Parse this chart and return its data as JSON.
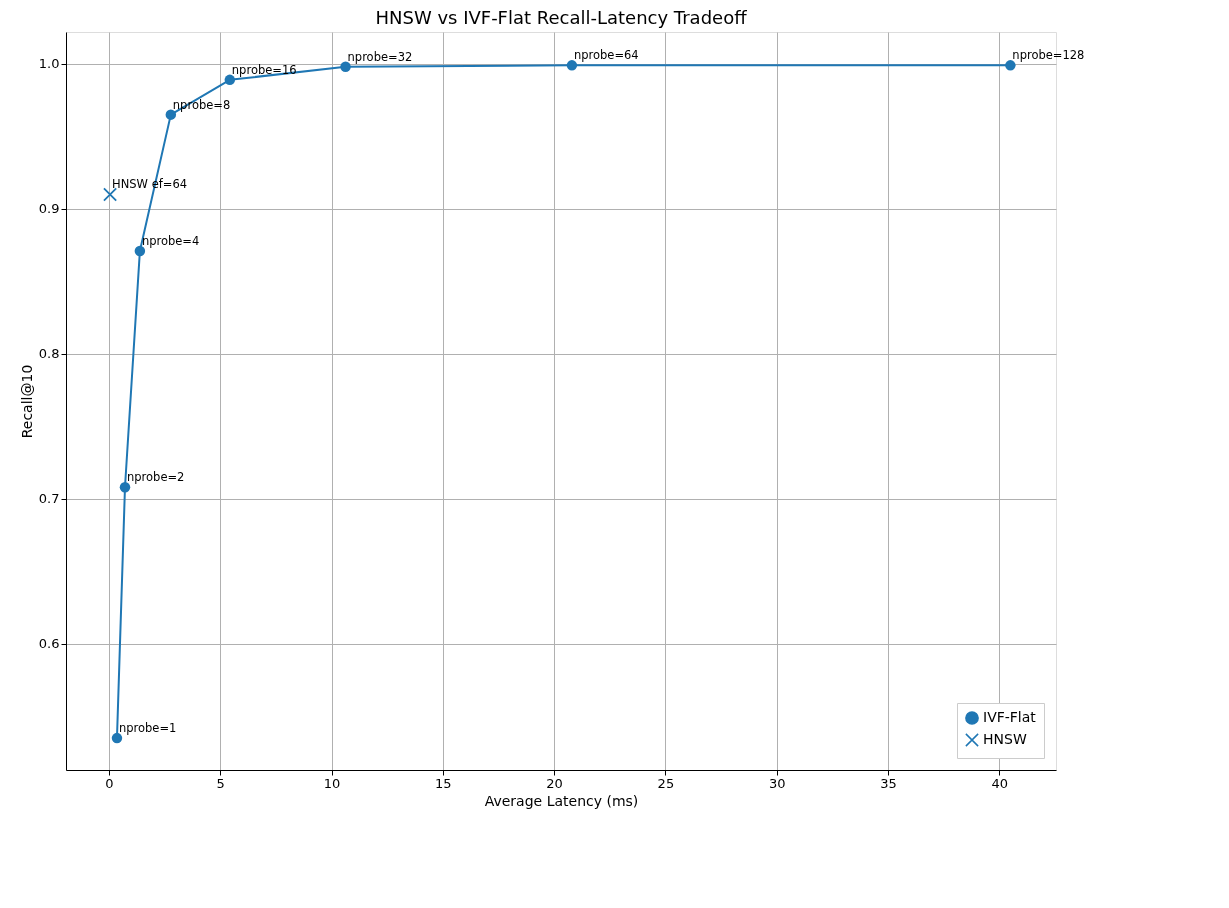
{
  "chart_data": {
    "type": "line",
    "title": "HNSW vs IVF-Flat Recall-Latency Tradeoff",
    "xlabel": "Average Latency (ms)",
    "ylabel": "Recall@10",
    "series": [
      {
        "name": "IVF-Flat",
        "type": "line",
        "marker": "circle",
        "color": "#1f77b4",
        "x": [
          0.36,
          0.72,
          1.39,
          2.78,
          5.43,
          10.63,
          20.8,
          40.5
        ],
        "values": [
          0.535,
          0.708,
          0.871,
          0.965,
          0.989,
          0.998,
          0.999,
          0.999
        ]
      },
      {
        "name": "HNSW",
        "type": "scatter",
        "marker": "cross",
        "color": "#1f77b4",
        "x": [
          0.05
        ],
        "values": [
          0.91
        ]
      }
    ],
    "annotations": [
      {
        "text": "nprobe=1",
        "x": 0.36,
        "y": 0.535
      },
      {
        "text": "nprobe=2",
        "x": 0.72,
        "y": 0.708
      },
      {
        "text": "nprobe=4",
        "x": 1.39,
        "y": 0.871
      },
      {
        "text": "nprobe=8",
        "x": 2.78,
        "y": 0.965
      },
      {
        "text": "nprobe=16",
        "x": 5.43,
        "y": 0.989
      },
      {
        "text": "nprobe=32",
        "x": 10.63,
        "y": 0.998
      },
      {
        "text": "nprobe=64",
        "x": 20.8,
        "y": 0.999
      },
      {
        "text": "nprobe=128",
        "x": 40.5,
        "y": 0.999
      },
      {
        "text": "HNSW ef=64",
        "x": 0.05,
        "y": 0.91
      }
    ],
    "xlim": [
      -1.93,
      42.55
    ],
    "ylim": [
      0.513,
      1.022
    ],
    "xticks": [
      0,
      5,
      10,
      15,
      20,
      25,
      30,
      35,
      40
    ],
    "yticks": [
      {
        "value": 0.6,
        "label": "0.6"
      },
      {
        "value": 0.7,
        "label": "0.7"
      },
      {
        "value": 0.8,
        "label": "0.8"
      },
      {
        "value": 0.9,
        "label": "0.9"
      },
      {
        "value": 1.0,
        "label": "1.0"
      }
    ],
    "grid": true,
    "legend": "bottom right"
  }
}
